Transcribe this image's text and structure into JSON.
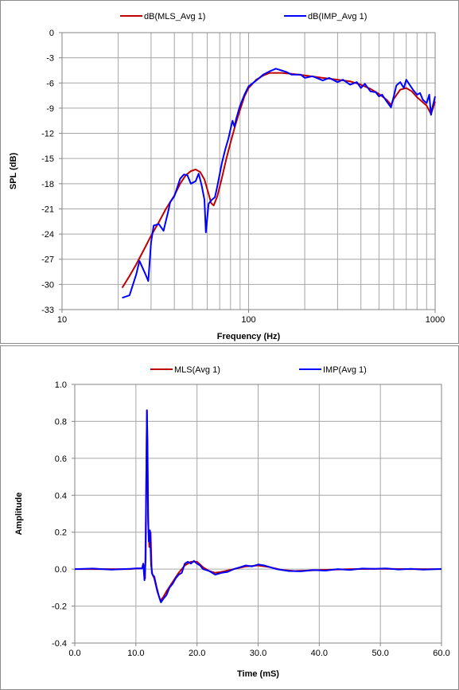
{
  "chart_data": [
    {
      "type": "line",
      "xlabel": "Frequency (Hz)",
      "ylabel": "SPL (dB)",
      "xscale": "log",
      "xlim": [
        10,
        1000
      ],
      "ylim": [
        -33,
        0
      ],
      "x_ticks": [
        "10",
        "100",
        "1000"
      ],
      "y_ticks": [
        "0",
        "-3",
        "-6",
        "-9",
        "-12",
        "-15",
        "-18",
        "-21",
        "-24",
        "-27",
        "-30",
        "-33"
      ],
      "grid": true,
      "legend_position": "top",
      "series": [
        {
          "name": "dB(MLS_Avg 1)",
          "color": "#c00000",
          "points": [
            [
              21,
              -30.4
            ],
            [
              23,
              -29
            ],
            [
              25,
              -27.6
            ],
            [
              28,
              -25.5
            ],
            [
              30,
              -24.2
            ],
            [
              33,
              -22.6
            ],
            [
              36,
              -21
            ],
            [
              40,
              -19.4
            ],
            [
              43,
              -18
            ],
            [
              46,
              -17
            ],
            [
              49,
              -16.5
            ],
            [
              52,
              -16.3
            ],
            [
              55,
              -16.6
            ],
            [
              58,
              -17.5
            ],
            [
              61,
              -19.2
            ],
            [
              63,
              -20.3
            ],
            [
              65,
              -20.6
            ],
            [
              68,
              -19.5
            ],
            [
              72,
              -17.3
            ],
            [
              76,
              -15
            ],
            [
              80,
              -13.1
            ],
            [
              85,
              -11
            ],
            [
              90,
              -9.2
            ],
            [
              95,
              -7.6
            ],
            [
              100,
              -6.6
            ],
            [
              110,
              -5.6
            ],
            [
              120,
              -5.1
            ],
            [
              130,
              -4.8
            ],
            [
              150,
              -4.8
            ],
            [
              170,
              -4.9
            ],
            [
              200,
              -5.1
            ],
            [
              250,
              -5.4
            ],
            [
              300,
              -5.6
            ],
            [
              350,
              -5.8
            ],
            [
              400,
              -6.2
            ],
            [
              450,
              -6.7
            ],
            [
              500,
              -7.3
            ],
            [
              550,
              -8
            ],
            [
              580,
              -8.6
            ],
            [
              600,
              -7.9
            ],
            [
              650,
              -6.8
            ],
            [
              700,
              -6.6
            ],
            [
              750,
              -7
            ],
            [
              800,
              -7.7
            ],
            [
              900,
              -8.7
            ],
            [
              950,
              -9.7
            ],
            [
              1000,
              -8.2
            ]
          ]
        },
        {
          "name": "dB(IMP_Avg 1)",
          "color": "#0000ff",
          "points": [
            [
              21,
              -31.6
            ],
            [
              23,
              -31.3
            ],
            [
              25,
              -28.8
            ],
            [
              26,
              -27.2
            ],
            [
              28,
              -28.8
            ],
            [
              29,
              -29.6
            ],
            [
              30,
              -25
            ],
            [
              31,
              -23
            ],
            [
              33,
              -22.8
            ],
            [
              35,
              -23.6
            ],
            [
              37,
              -21.4
            ],
            [
              38,
              -20.2
            ],
            [
              40,
              -19.5
            ],
            [
              43,
              -17.4
            ],
            [
              45,
              -16.9
            ],
            [
              47,
              -17
            ],
            [
              49,
              -18
            ],
            [
              52,
              -17.7
            ],
            [
              54,
              -16.8
            ],
            [
              56,
              -18.2
            ],
            [
              58,
              -19.9
            ],
            [
              59,
              -23.8
            ],
            [
              61,
              -20.4
            ],
            [
              63,
              -20
            ],
            [
              66,
              -19.6
            ],
            [
              68,
              -18.3
            ],
            [
              72,
              -15.5
            ],
            [
              75,
              -13.9
            ],
            [
              78,
              -12.6
            ],
            [
              80,
              -11.5
            ],
            [
              82,
              -10.5
            ],
            [
              84,
              -11.2
            ],
            [
              86,
              -10.2
            ],
            [
              90,
              -8.7
            ],
            [
              95,
              -7.4
            ],
            [
              100,
              -6.4
            ],
            [
              110,
              -5.7
            ],
            [
              120,
              -5
            ],
            [
              130,
              -4.6
            ],
            [
              140,
              -4.3
            ],
            [
              150,
              -4.5
            ],
            [
              160,
              -4.7
            ],
            [
              170,
              -5
            ],
            [
              190,
              -5
            ],
            [
              200,
              -5.4
            ],
            [
              220,
              -5.2
            ],
            [
              250,
              -5.7
            ],
            [
              270,
              -5.4
            ],
            [
              300,
              -5.9
            ],
            [
              320,
              -5.6
            ],
            [
              350,
              -6.2
            ],
            [
              380,
              -5.9
            ],
            [
              400,
              -6.6
            ],
            [
              420,
              -6.1
            ],
            [
              450,
              -7
            ],
            [
              480,
              -7.1
            ],
            [
              500,
              -7.6
            ],
            [
              520,
              -7.4
            ],
            [
              550,
              -8.2
            ],
            [
              580,
              -8.9
            ],
            [
              600,
              -7.6
            ],
            [
              620,
              -6.3
            ],
            [
              650,
              -5.9
            ],
            [
              680,
              -6.6
            ],
            [
              700,
              -5.6
            ],
            [
              730,
              -6.2
            ],
            [
              760,
              -6.8
            ],
            [
              800,
              -7.4
            ],
            [
              830,
              -7.2
            ],
            [
              860,
              -8
            ],
            [
              900,
              -8.4
            ],
            [
              930,
              -7.4
            ],
            [
              950,
              -9.8
            ],
            [
              970,
              -8.8
            ],
            [
              1000,
              -7.6
            ]
          ]
        }
      ]
    },
    {
      "type": "line",
      "xlabel": "Time (mS)",
      "ylabel": "Amplitude",
      "xlim": [
        0,
        60
      ],
      "ylim": [
        -0.4,
        1.0
      ],
      "x_ticks": [
        "0.0",
        "10.0",
        "20.0",
        "30.0",
        "40.0",
        "50.0",
        "60.0"
      ],
      "y_ticks": [
        "1.0",
        "0.8",
        "0.6",
        "0.4",
        "0.2",
        "0.0",
        "-0.2",
        "-0.4"
      ],
      "grid": true,
      "legend_position": "top",
      "series": [
        {
          "name": "MLS(Avg 1)",
          "color": "#c00000",
          "points": [
            [
              0,
              0
            ],
            [
              5,
              0
            ],
            [
              9,
              0
            ],
            [
              10,
              0.003
            ],
            [
              11,
              0.005
            ],
            [
              11.3,
              0.02
            ],
            [
              11.5,
              -0.05
            ],
            [
              11.7,
              0.48
            ],
            [
              11.8,
              0.86
            ],
            [
              11.9,
              0.6
            ],
            [
              12,
              0.25
            ],
            [
              12.2,
              0.12
            ],
            [
              12.4,
              0.2
            ],
            [
              12.6,
              -0.02
            ],
            [
              13,
              -0.05
            ],
            [
              13.5,
              -0.12
            ],
            [
              14,
              -0.17
            ],
            [
              14.5,
              -0.15
            ],
            [
              15,
              -0.12
            ],
            [
              16,
              -0.07
            ],
            [
              17,
              -0.02
            ],
            [
              18,
              0.02
            ],
            [
              19,
              0.04
            ],
            [
              20,
              0.04
            ],
            [
              21,
              0.01
            ],
            [
              22,
              -0.01
            ],
            [
              23,
              -0.02
            ],
            [
              24,
              -0.015
            ],
            [
              26,
              0.0
            ],
            [
              28,
              0.015
            ],
            [
              30,
              0.02
            ],
            [
              32,
              0.01
            ],
            [
              34,
              -0.005
            ],
            [
              36,
              -0.01
            ],
            [
              40,
              -0.005
            ],
            [
              45,
              0.0
            ],
            [
              50,
              0.002
            ],
            [
              55,
              0
            ],
            [
              60,
              0
            ]
          ]
        },
        {
          "name": "IMP(Avg 1)",
          "color": "#0000ff",
          "points": [
            [
              0,
              0
            ],
            [
              3,
              0.003
            ],
            [
              6,
              -0.003
            ],
            [
              9,
              0.002
            ],
            [
              10,
              0.004
            ],
            [
              11,
              0.004
            ],
            [
              11.2,
              0.03
            ],
            [
              11.4,
              -0.06
            ],
            [
              11.6,
              0.05
            ],
            [
              11.7,
              0.5
            ],
            [
              11.8,
              0.86
            ],
            [
              11.9,
              0.7
            ],
            [
              12,
              0.3
            ],
            [
              12.1,
              0.15
            ],
            [
              12.3,
              0.21
            ],
            [
              12.5,
              0.02
            ],
            [
              12.7,
              -0.03
            ],
            [
              13,
              -0.04
            ],
            [
              13.4,
              -0.1
            ],
            [
              13.8,
              -0.15
            ],
            [
              14.1,
              -0.18
            ],
            [
              14.5,
              -0.16
            ],
            [
              15,
              -0.14
            ],
            [
              15.5,
              -0.1
            ],
            [
              16,
              -0.08
            ],
            [
              16.5,
              -0.05
            ],
            [
              17,
              -0.03
            ],
            [
              17.5,
              -0.02
            ],
            [
              18,
              0.03
            ],
            [
              18.5,
              0.04
            ],
            [
              19,
              0.03
            ],
            [
              19.5,
              0.045
            ],
            [
              20,
              0.03
            ],
            [
              20.5,
              0.02
            ],
            [
              21,
              0.0
            ],
            [
              21.5,
              -0.005
            ],
            [
              22,
              -0.01
            ],
            [
              23,
              -0.03
            ],
            [
              24,
              -0.02
            ],
            [
              25,
              -0.015
            ],
            [
              26,
              0.0
            ],
            [
              27,
              0.01
            ],
            [
              28,
              0.02
            ],
            [
              29,
              0.015
            ],
            [
              30,
              0.025
            ],
            [
              31,
              0.02
            ],
            [
              32,
              0.01
            ],
            [
              33,
              0.0
            ],
            [
              34,
              -0.005
            ],
            [
              35,
              -0.01
            ],
            [
              37,
              -0.012
            ],
            [
              39,
              -0.005
            ],
            [
              41,
              -0.008
            ],
            [
              43,
              0.0
            ],
            [
              45,
              -0.004
            ],
            [
              47,
              0.003
            ],
            [
              49,
              0.002
            ],
            [
              51,
              0.004
            ],
            [
              53,
              -0.002
            ],
            [
              55,
              0.002
            ],
            [
              57,
              -0.003
            ],
            [
              60,
              0.001
            ]
          ]
        }
      ]
    }
  ]
}
